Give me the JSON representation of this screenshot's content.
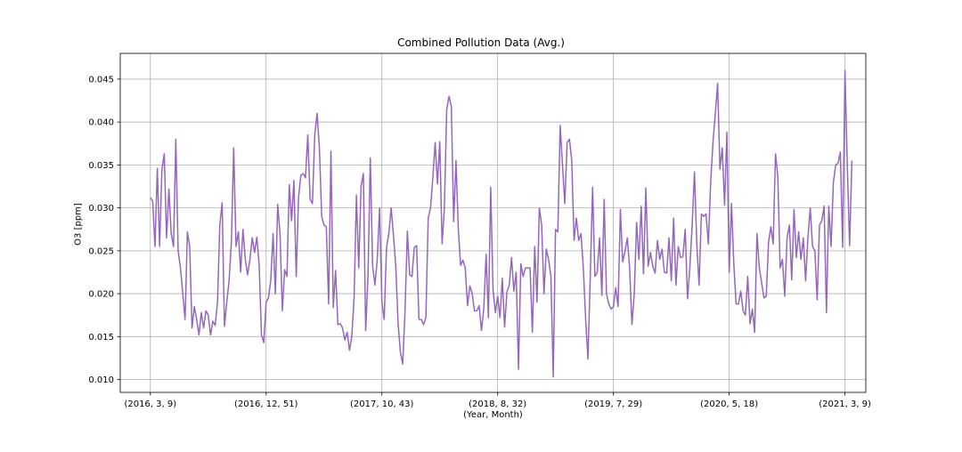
{
  "chart_data": {
    "type": "line",
    "title": "Combined Pollution Data (Avg.)",
    "xlabel": "(Year, Month)",
    "ylabel": "O3 [ppm]",
    "grid": true,
    "line_color": "#9467bd",
    "xlim": [
      -13,
      309
    ],
    "ylim": [
      0.0085,
      0.048
    ],
    "xticks": [
      {
        "pos": 0,
        "label": "(2016, 3, 9)"
      },
      {
        "pos": 50,
        "label": "(2016, 12, 51)"
      },
      {
        "pos": 100,
        "label": "(2017, 10, 43)"
      },
      {
        "pos": 150,
        "label": "(2018, 8, 32)"
      },
      {
        "pos": 200,
        "label": "(2019, 7, 29)"
      },
      {
        "pos": 250,
        "label": "(2020, 5, 18)"
      },
      {
        "pos": 300,
        "label": "(2021, 3, 9)"
      }
    ],
    "yticks": [
      0.01,
      0.015,
      0.02,
      0.025,
      0.03,
      0.035,
      0.04,
      0.045
    ],
    "series": [
      {
        "values": [
          0.0312,
          0.0308,
          0.0255,
          0.0346,
          0.0255,
          0.0345,
          0.0363,
          0.0265,
          0.0322,
          0.027,
          0.0255,
          0.038,
          0.025,
          0.023,
          0.02,
          0.017,
          0.0272,
          0.0255,
          0.016,
          0.0185,
          0.017,
          0.0152,
          0.0178,
          0.016,
          0.018,
          0.0175,
          0.0152,
          0.0168,
          0.0163,
          0.019,
          0.028,
          0.0306,
          0.0162,
          0.019,
          0.0215,
          0.026,
          0.037,
          0.0255,
          0.0272,
          0.0225,
          0.0275,
          0.024,
          0.0222,
          0.024,
          0.0265,
          0.0248,
          0.0266,
          0.0233,
          0.0152,
          0.0143,
          0.019,
          0.0195,
          0.0215,
          0.027,
          0.02,
          0.0304,
          0.027,
          0.018,
          0.0228,
          0.022,
          0.0327,
          0.0285,
          0.0332,
          0.022,
          0.0312,
          0.0338,
          0.034,
          0.0335,
          0.0385,
          0.031,
          0.0305,
          0.0385,
          0.041,
          0.037,
          0.029,
          0.028,
          0.0278,
          0.0188,
          0.0366,
          0.0184,
          0.0227,
          0.0164,
          0.0165,
          0.016,
          0.0146,
          0.0155,
          0.0134,
          0.015,
          0.0195,
          0.0315,
          0.023,
          0.0325,
          0.034,
          0.0157,
          0.022,
          0.0358,
          0.0232,
          0.021,
          0.024,
          0.03,
          0.019,
          0.017,
          0.0254,
          0.027,
          0.03,
          0.0268,
          0.0232,
          0.0165,
          0.0132,
          0.0118,
          0.018,
          0.0273,
          0.0222,
          0.022,
          0.0254,
          0.0256,
          0.017,
          0.017,
          0.0164,
          0.0172,
          0.0288,
          0.03,
          0.0335,
          0.0376,
          0.0328,
          0.0377,
          0.0258,
          0.03,
          0.0415,
          0.043,
          0.0418,
          0.0284,
          0.0355,
          0.0276,
          0.0233,
          0.0239,
          0.023,
          0.0186,
          0.0209,
          0.02,
          0.018,
          0.018,
          0.0186,
          0.0157,
          0.0182,
          0.0246,
          0.0172,
          0.0324,
          0.0205,
          0.0178,
          0.0197,
          0.0172,
          0.0218,
          0.0161,
          0.0202,
          0.021,
          0.0242,
          0.0203,
          0.0225,
          0.0112,
          0.0235,
          0.022,
          0.023,
          0.023,
          0.023,
          0.0155,
          0.0255,
          0.019,
          0.03,
          0.028,
          0.02,
          0.0252,
          0.024,
          0.022,
          0.0103,
          0.0275,
          0.0272,
          0.0396,
          0.035,
          0.0305,
          0.0376,
          0.038,
          0.0355,
          0.0262,
          0.0288,
          0.0262,
          0.027,
          0.023,
          0.017,
          0.0124,
          0.022,
          0.0324,
          0.022,
          0.0225,
          0.0265,
          0.0198,
          0.031,
          0.02,
          0.0188,
          0.0182,
          0.0185,
          0.0207,
          0.0185,
          0.0298,
          0.0237,
          0.0249,
          0.0265,
          0.023,
          0.0164,
          0.02,
          0.0283,
          0.024,
          0.0302,
          0.0223,
          0.0323,
          0.0232,
          0.0248,
          0.0232,
          0.0224,
          0.0262,
          0.024,
          0.0252,
          0.0225,
          0.0224,
          0.0265,
          0.0215,
          0.0288,
          0.021,
          0.0255,
          0.0242,
          0.0243,
          0.0275,
          0.0194,
          0.023,
          0.028,
          0.0342,
          0.0258,
          0.021,
          0.0293,
          0.029,
          0.0293,
          0.0258,
          0.033,
          0.0376,
          0.041,
          0.0445,
          0.0345,
          0.037,
          0.0303,
          0.0388,
          0.0225,
          0.0305,
          0.0234,
          0.0188,
          0.0188,
          0.0203,
          0.018,
          0.0175,
          0.022,
          0.0165,
          0.0182,
          0.0155,
          0.027,
          0.023,
          0.0213,
          0.0195,
          0.0197,
          0.026,
          0.0278,
          0.0258,
          0.0363,
          0.0337,
          0.023,
          0.024,
          0.0197,
          0.0265,
          0.028,
          0.0216,
          0.0298,
          0.0242,
          0.0272,
          0.024,
          0.0265,
          0.0215,
          0.0265,
          0.03,
          0.0255,
          0.025,
          0.0193,
          0.028,
          0.0285,
          0.0302,
          0.0178,
          0.0302,
          0.0255,
          0.033,
          0.035,
          0.0352,
          0.0365,
          0.0254,
          0.046,
          0.035,
          0.0256,
          0.0355
        ]
      }
    ]
  }
}
